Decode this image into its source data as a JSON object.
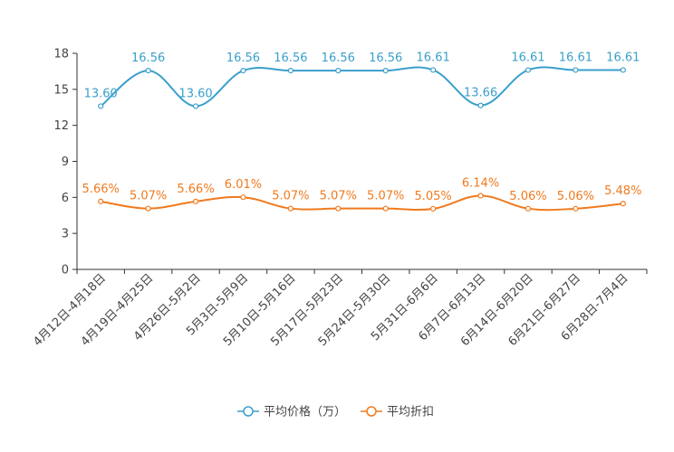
{
  "chart_data": {
    "type": "line",
    "categories": [
      "4月12日-4月18日",
      "4月19日-4月25日",
      "4月26日-5月2日",
      "5月3日-5月9日",
      "5月10日-5月16日",
      "5月17日-5月23日",
      "5月24日-5月30日",
      "5月31日-6月6日",
      "6月7日-6月13日",
      "6月14日-6月20日",
      "6月21日-6月27日",
      "6月28日-7月4日"
    ],
    "ylim": [
      0,
      18
    ],
    "yticks": [
      0,
      3,
      6,
      9,
      12,
      15,
      18
    ],
    "series": [
      {
        "name": "平均价格（万）",
        "color": "#3a9fcc",
        "values": [
          13.6,
          16.56,
          13.6,
          16.56,
          16.56,
          16.56,
          16.56,
          16.61,
          13.66,
          16.61,
          16.61,
          16.61
        ],
        "labels": [
          "13.60",
          "16.56",
          "13.60",
          "16.56",
          "16.56",
          "16.56",
          "16.56",
          "16.61",
          "13.66",
          "16.61",
          "16.61",
          "16.61"
        ]
      },
      {
        "name": "平均折扣",
        "color": "#f07a1e",
        "values": [
          5.66,
          5.07,
          5.66,
          6.01,
          5.07,
          5.07,
          5.07,
          5.05,
          6.14,
          5.06,
          5.06,
          5.48
        ],
        "labels": [
          "5.66%",
          "5.07%",
          "5.66%",
          "6.01%",
          "5.07%",
          "5.07%",
          "5.07%",
          "5.05%",
          "6.14%",
          "5.06%",
          "5.06%",
          "5.48%"
        ]
      }
    ],
    "legend_position": "bottom-center",
    "title": "",
    "xlabel": "",
    "ylabel": ""
  }
}
